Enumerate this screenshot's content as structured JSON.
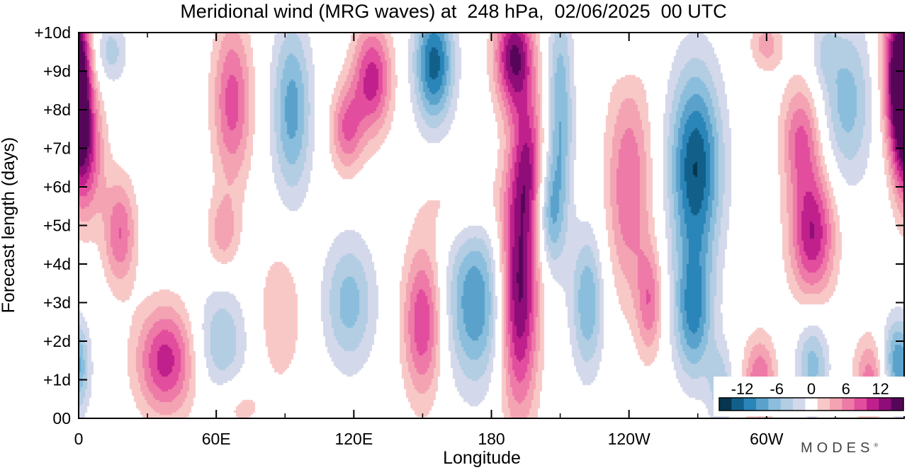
{
  "title": "Meridional wind (MRG waves) at  248 hPa,  02/06/2025  00 UTC",
  "logo": "MODES",
  "logo_mark": "®",
  "chart_data": {
    "type": "heatmap",
    "title": "Meridional wind (MRG waves) at  248 hPa,  02/06/2025  00 UTC",
    "xlabel": "Longitude",
    "ylabel": "Forecast length (days)",
    "x_ticks": [
      {
        "lon": 0,
        "label": "0"
      },
      {
        "lon": 60,
        "label": "60E"
      },
      {
        "lon": 120,
        "label": "120E"
      },
      {
        "lon": 180,
        "label": "180"
      },
      {
        "lon": 240,
        "label": "120W"
      },
      {
        "lon": 300,
        "label": "60W"
      }
    ],
    "x_minor_ticks": [
      30,
      90,
      150,
      210,
      270,
      330
    ],
    "xlim": [
      0,
      360
    ],
    "y_ticks": [
      {
        "day": 0,
        "label": "00"
      },
      {
        "day": 1,
        "label": "+1d"
      },
      {
        "day": 2,
        "label": "+2d"
      },
      {
        "day": 3,
        "label": "+3d"
      },
      {
        "day": 4,
        "label": "+4d"
      },
      {
        "day": 5,
        "label": "+5d"
      },
      {
        "day": 6,
        "label": "+6d"
      },
      {
        "day": 7,
        "label": "+7d"
      },
      {
        "day": 8,
        "label": "+8d"
      },
      {
        "day": 9,
        "label": "+9d"
      },
      {
        "day": 10,
        "label": "+10d"
      }
    ],
    "ylim": [
      0,
      10
    ],
    "colorbar": {
      "labels": [
        "-12",
        "-6",
        "0",
        "6",
        "12"
      ],
      "label_values": [
        -12,
        -6,
        0,
        6,
        12
      ],
      "levels": [
        -14,
        -12,
        -10,
        -8,
        -6,
        -4,
        -2,
        2,
        4,
        6,
        8,
        10,
        12,
        14
      ],
      "colors": [
        "#06364f",
        "#12608a",
        "#2a85b8",
        "#5aa2cc",
        "#8bbedc",
        "#b3cde3",
        "#d3d8ea",
        "#ffffff",
        "#f8c8c7",
        "#f4a3b3",
        "#ee7aa7",
        "#e24d9e",
        "#c0208b",
        "#8e0d78",
        "#560658"
      ]
    },
    "features": [
      {
        "sign": "neg",
        "lon": 14,
        "day": 9.5,
        "amp": 5,
        "sx": 5,
        "sy": 0.6
      },
      {
        "sign": "pos",
        "lon": 0,
        "day": 8.2,
        "amp": 12,
        "sx": 4,
        "sy": 1.6
      },
      {
        "sign": "pos",
        "lon": 5,
        "day": 6.8,
        "amp": 7,
        "sx": 5,
        "sy": 1.2
      },
      {
        "sign": "pos",
        "lon": 18,
        "day": 4.8,
        "amp": 8,
        "sx": 5,
        "sy": 1
      },
      {
        "sign": "pos",
        "lon": 38,
        "day": 1.5,
        "amp": 11,
        "sx": 9,
        "sy": 1
      },
      {
        "sign": "pos",
        "lon": 67,
        "day": 8.2,
        "amp": 9,
        "sx": 6,
        "sy": 1.5
      },
      {
        "sign": "pos",
        "lon": 63,
        "day": 4.8,
        "amp": 5,
        "sx": 5,
        "sy": 0.7
      },
      {
        "sign": "neg",
        "lon": 62,
        "day": 2,
        "amp": 6,
        "sx": 8,
        "sy": 1
      },
      {
        "sign": "neg",
        "lon": 93,
        "day": 8,
        "amp": 9,
        "sx": 6,
        "sy": 1.6
      },
      {
        "sign": "pos",
        "lon": 88,
        "day": 2.7,
        "amp": 4,
        "sx": 7,
        "sy": 1.3
      },
      {
        "sign": "neg",
        "lon": 118,
        "day": 3,
        "amp": 7,
        "sx": 8,
        "sy": 1.2
      },
      {
        "sign": "pos",
        "lon": 128,
        "day": 8.8,
        "amp": 11,
        "sx": 6,
        "sy": 1
      },
      {
        "sign": "pos",
        "lon": 117,
        "day": 7.5,
        "amp": 8,
        "sx": 5,
        "sy": 0.8
      },
      {
        "sign": "neg",
        "lon": 155,
        "day": 9.2,
        "amp": 13,
        "sx": 6,
        "sy": 1.1
      },
      {
        "sign": "pos",
        "lon": 150,
        "day": 2.5,
        "amp": 10,
        "sx": 6,
        "sy": 1.4
      },
      {
        "sign": "neg",
        "lon": 173,
        "day": 3,
        "amp": 10,
        "sx": 9,
        "sy": 1.5
      },
      {
        "sign": "pos",
        "lon": 168,
        "day": 5.6,
        "amp": 3,
        "sx": 13,
        "sy": 0.7
      },
      {
        "sign": "pos",
        "lon": 192,
        "day": 3.3,
        "amp": 15,
        "sx": 6,
        "sy": 2.2
      },
      {
        "sign": "pos",
        "lon": 190,
        "day": 9.4,
        "amp": 14,
        "sx": 6,
        "sy": 1
      },
      {
        "sign": "pos",
        "lon": 196,
        "day": 6.7,
        "amp": 9,
        "sx": 5,
        "sy": 1.3
      },
      {
        "sign": "neg",
        "lon": 210,
        "day": 7.8,
        "amp": 8,
        "sx": 4,
        "sy": 2.2
      },
      {
        "sign": "neg",
        "lon": 222,
        "day": 3,
        "amp": 8,
        "sx": 5,
        "sy": 1.3
      },
      {
        "sign": "neg",
        "lon": 205,
        "day": 5.3,
        "amp": 7,
        "sx": 4,
        "sy": 1
      },
      {
        "sign": "pos",
        "lon": 240,
        "day": 6,
        "amp": 8,
        "sx": 7,
        "sy": 2
      },
      {
        "sign": "pos",
        "lon": 249,
        "day": 3,
        "amp": 7,
        "sx": 4,
        "sy": 1
      },
      {
        "sign": "neg",
        "lon": 269,
        "day": 6.5,
        "amp": 14,
        "sx": 8,
        "sy": 1.8
      },
      {
        "sign": "neg",
        "lon": 268,
        "day": 2.7,
        "amp": 10,
        "sx": 6,
        "sy": 1.2
      },
      {
        "sign": "pos",
        "lon": 320,
        "day": 4.8,
        "amp": 12,
        "sx": 7,
        "sy": 1.2
      },
      {
        "sign": "pos",
        "lon": 315,
        "day": 7.3,
        "amp": 8,
        "sx": 6,
        "sy": 1
      },
      {
        "sign": "neg",
        "lon": 335,
        "day": 8.2,
        "amp": 7,
        "sx": 8,
        "sy": 1.5
      },
      {
        "sign": "pos",
        "lon": 357,
        "day": 9,
        "amp": 12,
        "sx": 5,
        "sy": 1.5
      },
      {
        "sign": "pos",
        "lon": 297,
        "day": 1,
        "amp": 8,
        "sx": 5,
        "sy": 0.8
      },
      {
        "sign": "pos",
        "lon": 345,
        "day": 1,
        "amp": 7,
        "sx": 5,
        "sy": 0.8
      },
      {
        "sign": "neg",
        "lon": 320,
        "day": 1.4,
        "amp": 7,
        "sx": 5,
        "sy": 0.9
      },
      {
        "sign": "neg",
        "lon": 355,
        "day": 1.5,
        "amp": 6,
        "sx": 4,
        "sy": 0.8
      },
      {
        "sign": "neg",
        "lon": 280,
        "day": 0.8,
        "amp": 5,
        "sx": 4,
        "sy": 0.8
      },
      {
        "sign": "neg",
        "lon": 0,
        "day": 1.3,
        "amp": 6,
        "sx": 4,
        "sy": 0.9
      },
      {
        "sign": "pos",
        "lon": 300,
        "day": 9.7,
        "amp": 5,
        "sx": 5,
        "sy": 0.5
      },
      {
        "sign": "neg",
        "lon": 239,
        "day": 9.7,
        "amp": 3,
        "sx": 5,
        "sy": 0.5
      },
      {
        "sign": "neg",
        "lon": 325,
        "day": 9.5,
        "amp": 3,
        "sx": 4,
        "sy": 0.6
      },
      {
        "sign": "pos",
        "lon": 70,
        "day": 0.3,
        "amp": 3,
        "sx": 8,
        "sy": 0.5
      }
    ]
  }
}
